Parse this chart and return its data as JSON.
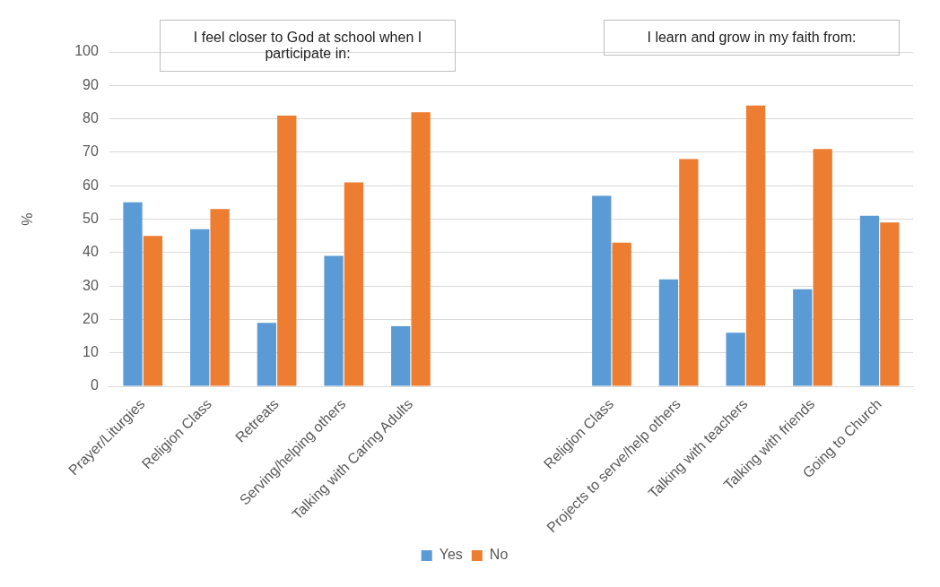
{
  "chart_data": {
    "type": "bar",
    "ylabel": "%",
    "categories": [
      "Prayer/Liturgies",
      "Religion Class",
      "Retreats",
      "Serving/helping others",
      "Talking with Caring Adults",
      null,
      null,
      "Religion Class",
      "Projects to serve/help others",
      "Talking with teachers",
      "Talking with friends",
      "Going to Church"
    ],
    "series": [
      {
        "name": "Yes",
        "color": "#5b9bd5",
        "values": [
          55,
          47,
          19,
          39,
          18,
          null,
          null,
          57,
          32,
          16,
          29,
          51
        ]
      },
      {
        "name": "No",
        "color": "#ed7d31",
        "values": [
          45,
          53,
          81,
          61,
          82,
          null,
          null,
          43,
          68,
          84,
          71,
          49
        ]
      }
    ],
    "ylim": [
      0,
      100
    ],
    "yticks": [
      0,
      10,
      20,
      30,
      40,
      50,
      60,
      70,
      80,
      90,
      100
    ],
    "grid": "y",
    "legend": "bottom",
    "annotations": [
      "I feel closer to God at school when I participate in:",
      "I learn and grow in my faith from:"
    ]
  }
}
